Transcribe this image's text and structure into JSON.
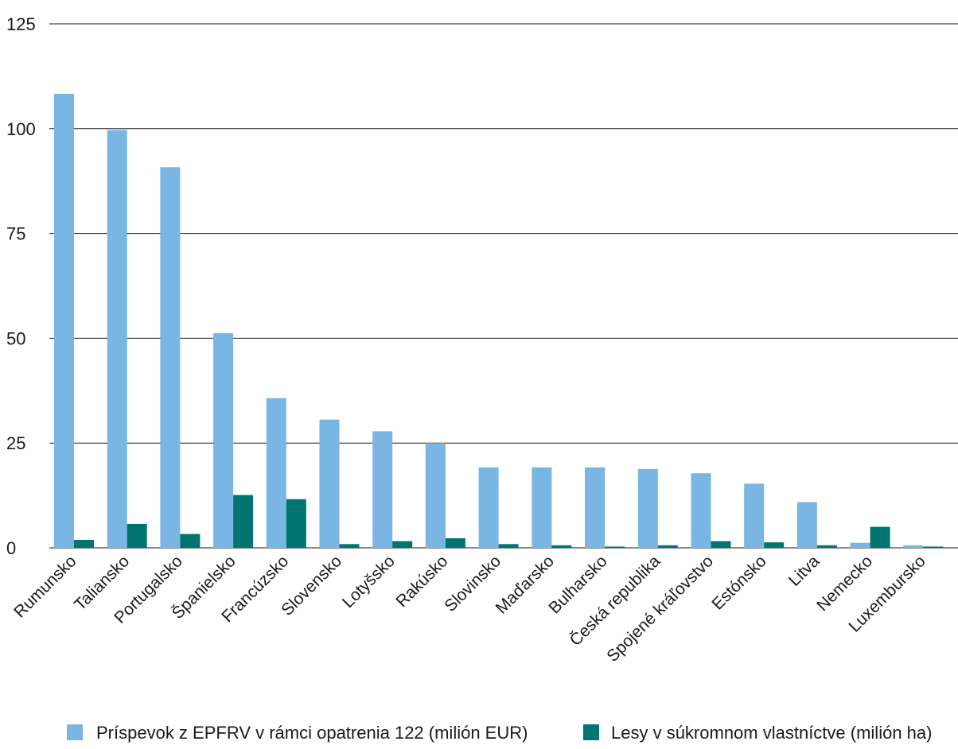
{
  "chart_data": {
    "type": "bar",
    "categories": [
      "Rumunsko",
      "Taliansko",
      "Portugalsko",
      "Španielsko",
      "Francúzsko",
      "Slovensko",
      "Lotyšsko",
      "Rakúsko",
      "Slovinsko",
      "Maďarsko",
      "Bulharsko",
      "Česká republika",
      "Spojené kráľovstvo",
      "Estónsko",
      "Litva",
      "Nemecko",
      "Luxembursko"
    ],
    "series": [
      {
        "name": "Príspevok z EPFRV v rámci opatrenia 122 (milión EUR)",
        "color": "#79b6e3",
        "values": [
          108.3,
          99.7,
          90.8,
          51.2,
          35.7,
          30.6,
          27.8,
          25.0,
          19.2,
          19.2,
          19.2,
          18.8,
          17.8,
          15.3,
          10.9,
          1.2,
          0.6
        ]
      },
      {
        "name": "Lesy v súkromnom vlastníctve (milión ha)",
        "color": "#00746e",
        "values": [
          1.9,
          5.7,
          3.3,
          12.6,
          11.6,
          0.9,
          1.6,
          2.3,
          0.9,
          0.6,
          0.3,
          0.6,
          1.6,
          1.3,
          0.6,
          5.0,
          0.3
        ]
      }
    ],
    "yticks": [
      0,
      25,
      50,
      75,
      100,
      125
    ],
    "ylim": [
      0,
      125
    ],
    "grid": true,
    "legend_position": "bottom",
    "title": "",
    "xlabel": "",
    "ylabel": ""
  }
}
